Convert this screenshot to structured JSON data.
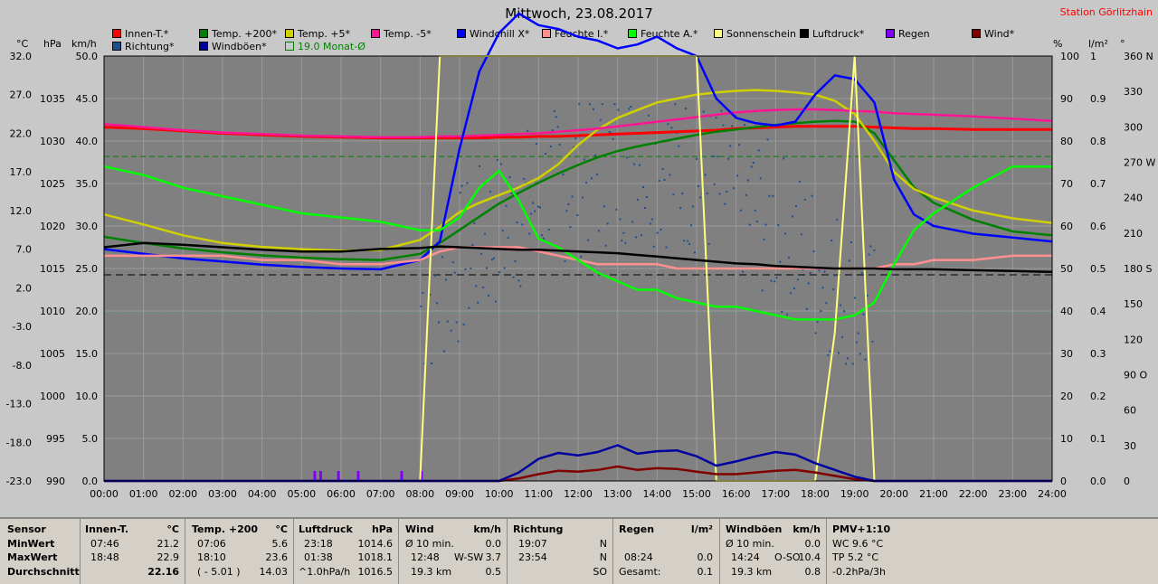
{
  "title": "Mittwoch, 23.08.2017",
  "station": "Station Görlitzhain",
  "legend": [
    {
      "label": "Innen-T.*",
      "color": "#ff0000"
    },
    {
      "label": "Temp. +200*",
      "color": "#008000"
    },
    {
      "label": "Temp. +5*",
      "color": "#d0d000"
    },
    {
      "label": "Temp. -5*",
      "color": "#ff1493"
    },
    {
      "label": "Windchill X*",
      "color": "#0000ff"
    },
    {
      "label": "Feuchte I.*",
      "color": "#ff9090"
    },
    {
      "label": "Feuchte A.*",
      "color": "#00ff00"
    },
    {
      "label": "Sonnenschein",
      "color": "#ffff80"
    },
    {
      "label": "Luftdruck*",
      "color": "#000000"
    },
    {
      "label": "Regen",
      "color": "#8000ff"
    },
    {
      "label": "Wind*",
      "color": "#800000"
    },
    {
      "label": "Richtung*",
      "color": "#1e4f8f"
    },
    {
      "label": "Windböen*",
      "color": "#0000a0"
    },
    {
      "label": "19.0 Monat-Ø",
      "color": "#008000"
    }
  ],
  "units": {
    "celsius": "°C",
    "hpa": "hPa",
    "kmh": "km/h",
    "percent": "%",
    "lm2": "l/m²",
    "deg": "°"
  },
  "axes": {
    "kmh_ticks": [
      "50.0",
      "45.0",
      "40.0",
      "35.0",
      "30.0",
      "25.0",
      "20.0",
      "15.0",
      "10.0",
      "5.0",
      "0.0"
    ],
    "celsius_ticks": [
      "32.0",
      "27.0",
      "22.0",
      "17.0",
      "12.0",
      "7.0",
      "2.0",
      "-3.0",
      "-8.0",
      "-13.0",
      "-18.0",
      "-23.0"
    ],
    "hpa_ticks": [
      "1035",
      "1030",
      "1025",
      "1020",
      "1015",
      "1010",
      "1005",
      "1000",
      "995",
      "990"
    ],
    "percent_ticks": [
      "100",
      "90",
      "80",
      "70",
      "60",
      "50",
      "40",
      "30",
      "20",
      "10",
      "0"
    ],
    "rain_ticks": [
      "1",
      "0.9",
      "0.8",
      "0.7",
      "0.6",
      "0.5",
      "0.4",
      "0.3",
      "0.2",
      "0.1",
      "0.0"
    ],
    "dir_ticks": [
      "360 N",
      "330",
      "300",
      "270 W",
      "240",
      "210",
      "180 S",
      "150",
      "120",
      "90 O",
      "60",
      "30",
      "0"
    ],
    "time_ticks": [
      "00:00",
      "01:00",
      "02:00",
      "03:00",
      "04:00",
      "05:00",
      "06:00",
      "07:00",
      "08:00",
      "09:00",
      "10:00",
      "11:00",
      "12:00",
      "13:00",
      "14:00",
      "15:00",
      "16:00",
      "17:00",
      "18:00",
      "19:00",
      "20:00",
      "21:00",
      "22:00",
      "23:00",
      "24:00"
    ]
  },
  "chart_data": {
    "type": "line",
    "title": "Mittwoch, 23.08.2017",
    "xlabel": "",
    "ylabel": "km/h",
    "x_hours": [
      0,
      1,
      2,
      3,
      4,
      5,
      6,
      7,
      8,
      8.5,
      9,
      9.5,
      10,
      10.5,
      11,
      11.5,
      12,
      12.5,
      13,
      13.5,
      14,
      14.5,
      15,
      15.5,
      16,
      16.5,
      17,
      17.5,
      18,
      18.5,
      19,
      19.5,
      20,
      20.5,
      21,
      22,
      23,
      24
    ],
    "ylim_kmh": [
      0,
      50
    ],
    "grid": true,
    "series": [
      {
        "name": "Innen-T.*",
        "axis": "°C",
        "color": "#ff0000",
        "values": [
          22.8,
          22.6,
          22.3,
          22.0,
          21.8,
          21.6,
          21.5,
          21.4,
          21.4,
          21.4,
          21.4,
          21.4,
          21.5,
          21.5,
          21.6,
          21.6,
          21.7,
          21.8,
          21.9,
          22.0,
          22.1,
          22.2,
          22.3,
          22.4,
          22.6,
          22.7,
          22.8,
          22.9,
          22.9,
          22.9,
          22.9,
          22.8,
          22.7,
          22.6,
          22.6,
          22.5,
          22.5,
          22.5
        ]
      },
      {
        "name": "Temp. +200*",
        "axis": "°C",
        "color": "#008000",
        "values": [
          8.6,
          7.8,
          7.1,
          6.6,
          6.2,
          5.9,
          5.7,
          5.6,
          6.4,
          7.8,
          9.5,
          11.2,
          12.9,
          14.3,
          15.6,
          16.8,
          17.9,
          18.9,
          19.7,
          20.3,
          20.8,
          21.3,
          21.8,
          22.2,
          22.5,
          22.8,
          23.1,
          23.3,
          23.5,
          23.6,
          23.5,
          22.0,
          18.5,
          15.0,
          13.0,
          10.8,
          9.3,
          8.8
        ]
      },
      {
        "name": "Temp. +5*",
        "axis": "°C",
        "color": "#d0d000",
        "values": [
          11.5,
          10.2,
          8.8,
          7.8,
          7.3,
          7.0,
          6.8,
          6.9,
          8.2,
          9.9,
          11.8,
          13.0,
          14.0,
          15.0,
          16.2,
          18.0,
          20.5,
          22.5,
          24.0,
          25.0,
          26.0,
          26.5,
          27.0,
          27.3,
          27.5,
          27.6,
          27.5,
          27.3,
          27.0,
          26.2,
          24.5,
          21.0,
          17.0,
          14.8,
          13.7,
          12.0,
          11.0,
          10.4
        ]
      },
      {
        "name": "Temp. -5*",
        "axis": "°C",
        "color": "#ff1493",
        "values": [
          23.2,
          22.8,
          22.4,
          22.1,
          21.9,
          21.7,
          21.6,
          21.5,
          21.5,
          21.6,
          21.6,
          21.7,
          21.8,
          21.9,
          22.0,
          22.2,
          22.4,
          22.6,
          22.9,
          23.2,
          23.5,
          23.8,
          24.1,
          24.4,
          24.7,
          24.9,
          25.0,
          25.1,
          25.1,
          25.0,
          24.9,
          24.8,
          24.6,
          24.5,
          24.4,
          24.2,
          23.9,
          23.6
        ]
      },
      {
        "name": "Windchill X*",
        "axis": "°C",
        "color": "#0000ff",
        "values": [
          7.0,
          6.4,
          5.8,
          5.4,
          5.0,
          4.7,
          4.5,
          4.4,
          5.6,
          8.0,
          20.0,
          30.0,
          35.0,
          37.5,
          36.0,
          35.5,
          34.5,
          34.0,
          33.0,
          33.5,
          34.5,
          33.0,
          32.0,
          26.5,
          24.0,
          23.3,
          23.0,
          23.5,
          27.0,
          29.5,
          29.0,
          26.0,
          16.0,
          11.5,
          10.0,
          9.0,
          8.5,
          8.0
        ]
      },
      {
        "name": "Feuchte I.*",
        "axis": "%",
        "color": "#ff9090",
        "values": [
          53,
          53,
          53,
          53,
          52,
          52,
          51,
          51,
          52,
          54,
          55,
          55,
          55,
          55,
          54,
          53,
          52,
          51,
          51,
          51,
          51,
          50,
          50,
          50,
          50,
          50,
          50,
          50,
          50,
          50,
          50,
          50,
          51,
          51,
          52,
          52,
          53,
          53
        ]
      },
      {
        "name": "Feuchte A.*",
        "axis": "%",
        "color": "#00ff00",
        "values": [
          74,
          72,
          69,
          67,
          65,
          63,
          62,
          61,
          59,
          59,
          62,
          69,
          73,
          66,
          57,
          55,
          52,
          49,
          47,
          45,
          45,
          43,
          42,
          41,
          41,
          40,
          39,
          38,
          38,
          38,
          39,
          42,
          51,
          59,
          63,
          69,
          74,
          74
        ]
      },
      {
        "name": "Sonnenschein",
        "axis": "%",
        "color": "#ffff80",
        "values": [
          0,
          0,
          0,
          0,
          0,
          0,
          0,
          0,
          0,
          100,
          100,
          100,
          100,
          100,
          100,
          100,
          100,
          100,
          100,
          100,
          100,
          100,
          100,
          0,
          0,
          0,
          0,
          0,
          0,
          35,
          100,
          0,
          0,
          0,
          0,
          0,
          0,
          0
        ]
      },
      {
        "name": "Luftdruck*",
        "axis": "hPa",
        "color": "#000000",
        "values": [
          1017.5,
          1018.0,
          1017.8,
          1017.5,
          1017.2,
          1017.0,
          1017.0,
          1017.3,
          1017.4,
          1017.6,
          1017.5,
          1017.4,
          1017.3,
          1017.2,
          1017.2,
          1017.1,
          1017.0,
          1016.9,
          1016.8,
          1016.6,
          1016.4,
          1016.2,
          1016.0,
          1015.8,
          1015.6,
          1015.5,
          1015.3,
          1015.2,
          1015.1,
          1015.0,
          1015.0,
          1015.0,
          1014.9,
          1014.9,
          1014.9,
          1014.8,
          1014.7,
          1014.6
        ]
      },
      {
        "name": "Wind*",
        "axis": "km/h",
        "color": "#800000",
        "values": [
          0,
          0,
          0,
          0,
          0,
          0,
          0,
          0,
          0,
          0,
          0,
          0,
          0,
          0.3,
          0.8,
          1.2,
          1.1,
          1.3,
          1.7,
          1.3,
          1.5,
          1.4,
          1.1,
          0.8,
          0.8,
          1.0,
          1.2,
          1.3,
          1.0,
          0.6,
          0.2,
          0,
          0,
          0,
          0,
          0,
          0,
          0
        ]
      },
      {
        "name": "Windböen*",
        "axis": "km/h",
        "color": "#0000a0",
        "values": [
          0,
          0,
          0,
          0,
          0,
          0,
          0,
          0,
          0,
          0,
          0,
          0,
          0,
          1.0,
          2.6,
          3.3,
          3.0,
          3.4,
          4.2,
          3.2,
          3.5,
          3.6,
          2.9,
          1.8,
          2.3,
          2.9,
          3.4,
          3.1,
          2.1,
          1.3,
          0.5,
          0,
          0,
          0,
          0,
          0,
          0,
          0
        ]
      }
    ],
    "reference_lines": [
      {
        "name": "19.0 Monat-Ø",
        "axis": "°C",
        "value": 19.0,
        "color": "#008000"
      }
    ]
  },
  "stats": {
    "headers": {
      "sensor": "Sensor",
      "innen": "Innen-T.",
      "innen_u": "°C",
      "temp": "Temp. +200",
      "temp_u": "°C",
      "luft": "Luftdruck",
      "luft_u": "hPa",
      "wind": "Wind",
      "wind_u": "km/h",
      "richtung": "Richtung",
      "regen": "Regen",
      "regen_u": "l/m²",
      "boen": "Windböen",
      "boen_u": "km/h",
      "pmv": "PMV+1:10"
    },
    "labels": {
      "min": "MinWert",
      "max": "MaxWert",
      "avg": "Durchschnitt"
    },
    "innen": {
      "min_t": "07:46",
      "min_v": "21.2",
      "max_t": "18:48",
      "max_v": "22.9",
      "avg_v": "22.16"
    },
    "temp": {
      "min_t": "07:06",
      "min_v": "5.6",
      "max_t": "18:10",
      "max_v": "23.6",
      "avg_t": "( - 5.01 )",
      "avg_v": "14.03"
    },
    "luft": {
      "min_t": "23:18",
      "min_v": "1014.6",
      "max_t": "01:38",
      "max_v": "1018.1",
      "avg_t": "^1.0hPa/h",
      "avg_v": "1016.5"
    },
    "wind": {
      "min_t": "Ø 10 min.",
      "min_v": "0.0",
      "max_t": "12:48",
      "max_d": "W-SW",
      "max_v": "3.7",
      "avg_t": "19.3 km",
      "avg_v": "0.5"
    },
    "richtung": {
      "min_t": "19:07",
      "min_v": "N",
      "max_t": "23:54",
      "max_v": "N",
      "avg_v": "SO"
    },
    "regen": {
      "max_t": "08:24",
      "max_v": "0.0",
      "avg_t": "Gesamt:",
      "avg_v": "0.1"
    },
    "boen": {
      "min_t": "Ø 10 min.",
      "min_v": "0.0",
      "max_t": "14:24",
      "max_d": "O-SO",
      "max_v": "10.4",
      "avg_t": "19.3 km",
      "avg_v": "0.8"
    },
    "pmv": {
      "min": "WC 9.6 °C",
      "max": "TP 5.2 °C",
      "avg": "-0.2hPa/3h"
    }
  }
}
